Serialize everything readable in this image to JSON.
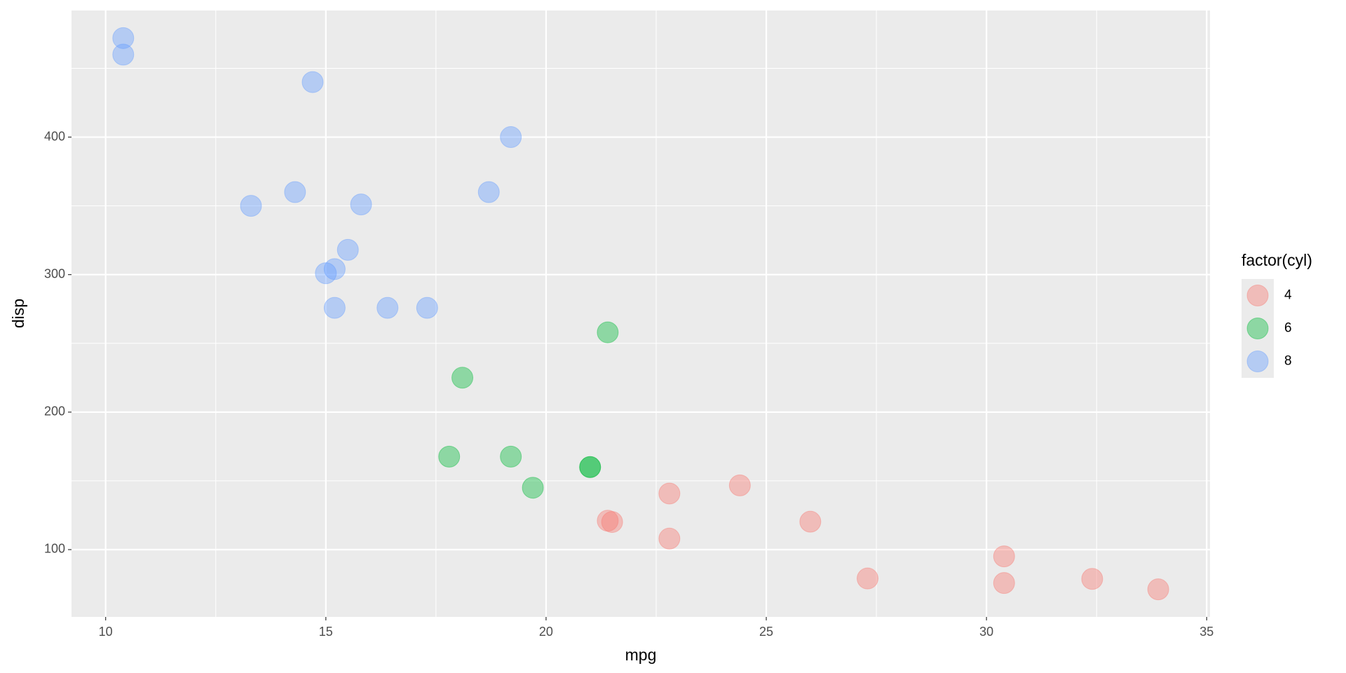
{
  "chart_data": {
    "type": "scatter",
    "x_label": "mpg",
    "y_label": "disp",
    "legend_title": "factor(cyl)",
    "xlim": [
      9.225,
      35.075
    ],
    "ylim": [
      51.055,
      492.045
    ],
    "xticks": [
      10,
      15,
      20,
      25,
      30,
      35
    ],
    "yticks": [
      100,
      200,
      300,
      400
    ],
    "grid": true,
    "legend_position": "right",
    "opacity": 0.4,
    "series": [
      {
        "name": "4",
        "color": "#F8766D",
        "x": [
          22.8,
          24.4,
          22.8,
          32.4,
          30.4,
          33.9,
          21.5,
          27.3,
          26.0,
          30.4,
          21.4
        ],
        "values": [
          108,
          146.7,
          140.8,
          78.7,
          75.7,
          71.1,
          120.1,
          79,
          120.3,
          95.1,
          121
        ]
      },
      {
        "name": "6",
        "color": "#00BA38",
        "x": [
          21.0,
          21.0,
          21.4,
          18.1,
          19.2,
          17.8,
          19.7
        ],
        "values": [
          160,
          160,
          258,
          225,
          167.6,
          167.6,
          145
        ]
      },
      {
        "name": "8",
        "color": "#619CFF",
        "x": [
          18.7,
          14.3,
          16.4,
          17.3,
          15.2,
          10.4,
          10.4,
          14.7,
          15.5,
          15.2,
          13.3,
          19.2,
          15.8,
          15.0
        ],
        "values": [
          360,
          360,
          275.8,
          275.8,
          275.8,
          472,
          460,
          440,
          318,
          304,
          350,
          400,
          351,
          301
        ]
      }
    ]
  }
}
